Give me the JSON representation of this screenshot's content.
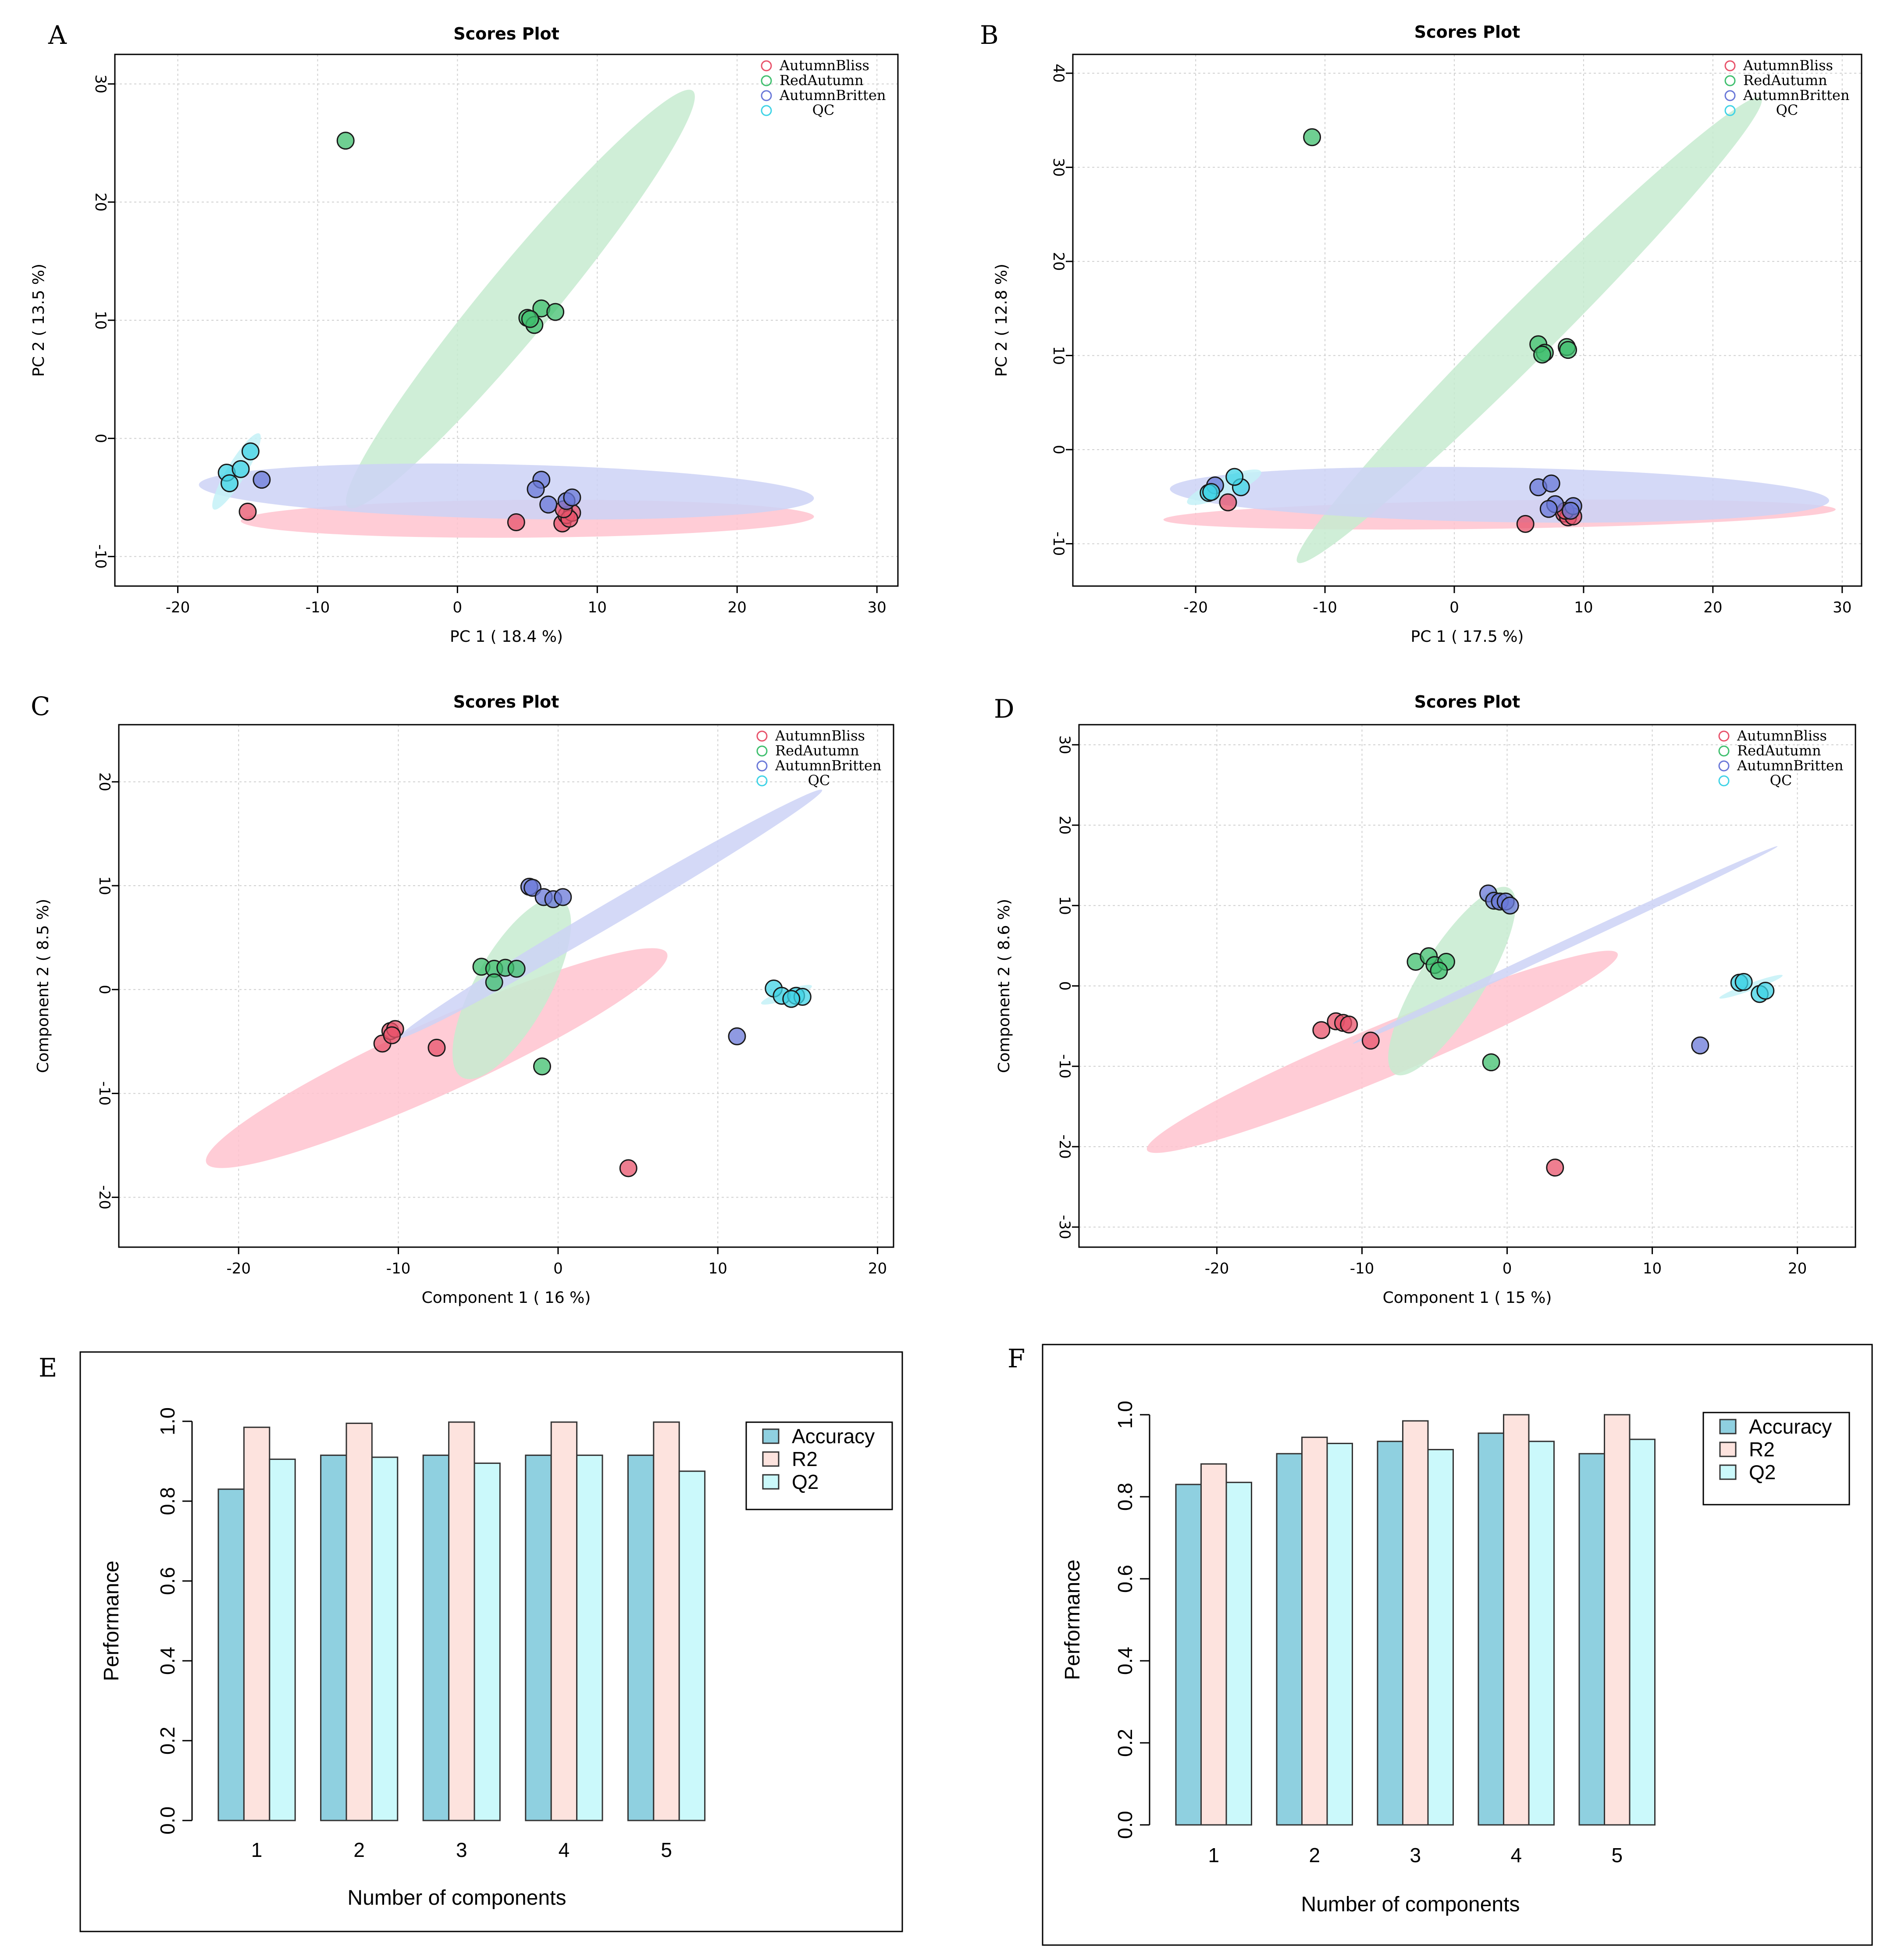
{
  "colors": {
    "AutumnBliss": "#e8536b",
    "RedAutumn": "#3fbf6e",
    "AutumnBritten": "#6a78d8",
    "QC": "#3fd3e6",
    "ellipse_AutumnBliss": "#ffc3cf",
    "ellipse_RedAutumn": "#c7ebd0",
    "ellipse_AutumnBritten": "#cdd2f6",
    "ellipse_QC": "#c4f1f7",
    "bar_Accuracy": "#8fd0e0",
    "bar_R2": "#fde3de",
    "bar_Q2": "#cbf9fb"
  },
  "chart_data": [
    {
      "panel": "A",
      "type": "scatter",
      "title": "Scores Plot",
      "xlabel": "PC 1 ( 18.4 %)",
      "ylabel": "PC 2 ( 13.5 %)",
      "xlim": [
        -24.5,
        31.5
      ],
      "ylim": [
        -12.5,
        32.5
      ],
      "xticks": [
        -20,
        -10,
        0,
        10,
        20,
        30
      ],
      "yticks": [
        -10,
        0,
        10,
        20,
        30
      ],
      "xtick_labels": [
        "-20",
        "-10",
        "0",
        "10",
        "20",
        "30"
      ],
      "ytick_labels": [
        "-10",
        "0",
        "10",
        "20",
        "30"
      ],
      "legend": [
        "AutumnBliss",
        "RedAutumn",
        "AutumnBritten",
        "QC"
      ],
      "series": [
        {
          "name": "AutumnBliss",
          "x": [
            -15,
            4.2,
            7.5,
            7.8,
            8.2,
            8,
            7.6
          ],
          "y": [
            -6.2,
            -7.1,
            -7.2,
            -6.5,
            -6.3,
            -6.8,
            -6
          ]
        },
        {
          "name": "RedAutumn",
          "x": [
            -8,
            5,
            6,
            7,
            5.5,
            5.2
          ],
          "y": [
            25.2,
            10.2,
            11,
            10.7,
            9.6,
            10.1
          ]
        },
        {
          "name": "AutumnBritten",
          "x": [
            -14,
            6,
            5.6,
            6.5,
            7.8,
            8.2
          ],
          "y": [
            -3.5,
            -3.5,
            -4.3,
            -5.6,
            -5.3,
            -5
          ]
        },
        {
          "name": "QC",
          "x": [
            -16.5,
            -16.3,
            -15.5,
            -14.8
          ],
          "y": [
            -2.9,
            -3.8,
            -2.6,
            -1.1
          ]
        }
      ],
      "ellipses": [
        {
          "group": "AutumnBliss",
          "cx": 5,
          "cy": -6.8,
          "rx": 20.5,
          "ry": 1.6,
          "angle_deg": 0.5
        },
        {
          "group": "RedAutumn",
          "cx": 4.5,
          "cy": 11.8,
          "rx": 21.5,
          "ry": 2.6,
          "angle_deg": 55
        },
        {
          "group": "AutumnBritten",
          "cx": 3.5,
          "cy": -4.5,
          "rx": 22,
          "ry": 2.3,
          "angle_deg": -1.5
        },
        {
          "group": "QC",
          "cx": -15.8,
          "cy": -2.8,
          "rx": 3.6,
          "ry": 0.7,
          "angle_deg": 63
        }
      ]
    },
    {
      "panel": "B",
      "type": "scatter",
      "title": "Scores Plot",
      "xlabel": "PC 1 ( 17.5 %)",
      "ylabel": "PC 2 ( 12.8 %)",
      "xlim": [
        -29.5,
        31.5
      ],
      "ylim": [
        -14.5,
        42
      ],
      "xticks": [
        -20,
        -10,
        0,
        10,
        20,
        30
      ],
      "yticks": [
        -10,
        0,
        10,
        20,
        30,
        40
      ],
      "xtick_labels": [
        "-20",
        "-10",
        "0",
        "10",
        "20",
        "30"
      ],
      "ytick_labels": [
        "-10",
        "0",
        "10",
        "20",
        "30",
        "40"
      ],
      "legend": [
        "AutumnBliss",
        "RedAutumn",
        "AutumnBritten",
        "QC"
      ],
      "series": [
        {
          "name": "AutumnBliss",
          "x": [
            -17.5,
            5.5,
            8.5,
            8.8,
            9.2,
            8.6
          ],
          "y": [
            -5.6,
            -7.9,
            -6.8,
            -7.2,
            -7.1,
            -6.5
          ]
        },
        {
          "name": "RedAutumn",
          "x": [
            -11,
            6.5,
            7,
            6.8,
            8.7,
            8.8
          ],
          "y": [
            33.2,
            11.2,
            10.3,
            10.1,
            10.9,
            10.6
          ]
        },
        {
          "name": "AutumnBritten",
          "x": [
            -18.5,
            6.5,
            7.5,
            7.8,
            9.2,
            7.3,
            9
          ],
          "y": [
            -3.8,
            -4,
            -3.6,
            -5.8,
            -6,
            -6.3,
            -6.5
          ]
        },
        {
          "name": "QC",
          "x": [
            -19,
            -16.5,
            -17,
            -18.8
          ],
          "y": [
            -4.6,
            -4,
            -2.9,
            -4.5
          ]
        }
      ],
      "ellipses": [
        {
          "group": "AutumnBliss",
          "cx": 3.5,
          "cy": -6.9,
          "rx": 26,
          "ry": 1.5,
          "angle_deg": 1.2
        },
        {
          "group": "RedAutumn",
          "cx": 5.8,
          "cy": 12.7,
          "rx": 30.5,
          "ry": 2.3,
          "angle_deg": 54
        },
        {
          "group": "AutumnBritten",
          "cx": 3.5,
          "cy": -4.8,
          "rx": 25.5,
          "ry": 2.9,
          "angle_deg": -1.4
        },
        {
          "group": "QC",
          "cx": -17.8,
          "cy": -4,
          "rx": 3.3,
          "ry": 0.9,
          "angle_deg": 30
        }
      ]
    },
    {
      "panel": "C",
      "type": "scatter",
      "title": "Scores Plot",
      "xlabel": "Component 1 ( 16 %)",
      "ylabel": "Component 2 ( 8.5 %)",
      "xlim": [
        -27.5,
        21
      ],
      "ylim": [
        -24.8,
        25.5
      ],
      "xticks": [
        -20,
        -10,
        0,
        10,
        20
      ],
      "yticks": [
        -20,
        -10,
        0,
        10,
        20
      ],
      "xtick_labels": [
        "-20",
        "-10",
        "0",
        "10",
        "20"
      ],
      "ytick_labels": [
        "-20",
        "-10",
        "0",
        "10",
        "20"
      ],
      "legend": [
        "AutumnBliss",
        "RedAutumn",
        "AutumnBritten",
        "QC"
      ],
      "series": [
        {
          "name": "AutumnBliss",
          "x": [
            -11,
            -10.5,
            -10.2,
            -10.4,
            -7.6,
            4.4
          ],
          "y": [
            -5.2,
            -4,
            -3.8,
            -4.4,
            -5.6,
            -17.2
          ]
        },
        {
          "name": "RedAutumn",
          "x": [
            -4.8,
            -4,
            -3.3,
            -2.6,
            -4,
            -1
          ],
          "y": [
            2.2,
            2,
            2.1,
            2,
            0.7,
            -7.4
          ]
        },
        {
          "name": "AutumnBritten",
          "x": [
            -1.8,
            -1.6,
            -0.9,
            -0.3,
            0.3,
            11.2
          ],
          "y": [
            9.9,
            9.8,
            8.9,
            8.7,
            8.9,
            -4.5
          ]
        },
        {
          "name": "QC",
          "x": [
            13.5,
            14,
            14.9,
            15.3,
            14.6
          ],
          "y": [
            0.1,
            -0.6,
            -0.6,
            -0.7,
            -0.9
          ]
        }
      ],
      "ellipses": [
        {
          "group": "AutumnBliss",
          "cx": -7.6,
          "cy": -6.6,
          "rx": 17.6,
          "ry": 2.9,
          "angle_deg": 35
        },
        {
          "group": "RedAutumn",
          "cx": -2.9,
          "cy": 0.1,
          "rx": 9.1,
          "ry": 2.4,
          "angle_deg": 70
        },
        {
          "group": "AutumnBritten",
          "cx": 3.3,
          "cy": 7.3,
          "rx": 17.8,
          "ry": 0.85,
          "angle_deg": 42
        },
        {
          "group": "QC",
          "cx": 14.3,
          "cy": -0.5,
          "rx": 1.8,
          "ry": 0.4,
          "angle_deg": 28
        }
      ]
    },
    {
      "panel": "D",
      "type": "scatter",
      "title": "Scores Plot",
      "xlabel": "Component 1 ( 15 %)",
      "ylabel": "Component 2 ( 8.6 %)",
      "xlim": [
        -29.5,
        24
      ],
      "ylim": [
        -32.5,
        32.5
      ],
      "xticks": [
        -20,
        -10,
        0,
        10,
        20
      ],
      "yticks": [
        -30,
        -20,
        -10,
        0,
        10,
        20,
        30
      ],
      "xtick_labels": [
        "-20",
        "-10",
        "0",
        "10",
        "20"
      ],
      "ytick_labels": [
        "-30",
        "-20",
        "-10",
        "0",
        "10",
        "20",
        "30"
      ],
      "legend": [
        "AutumnBliss",
        "RedAutumn",
        "AutumnBritten",
        "QC"
      ],
      "series": [
        {
          "name": "AutumnBliss",
          "x": [
            -12.8,
            -11.8,
            -11.3,
            -10.9,
            -9.4,
            3.3
          ],
          "y": [
            -5.5,
            -4.4,
            -4.6,
            -4.8,
            -6.8,
            -22.6
          ]
        },
        {
          "name": "RedAutumn",
          "x": [
            -6.3,
            -5.4,
            -5,
            -4.2,
            -4.7,
            -1.1
          ],
          "y": [
            3,
            3.7,
            2.6,
            3,
            1.9,
            -9.5
          ]
        },
        {
          "name": "AutumnBritten",
          "x": [
            -1.3,
            -0.9,
            -0.5,
            -0.1,
            0.2,
            13.3
          ],
          "y": [
            11.5,
            10.6,
            10.5,
            10.5,
            10,
            -7.4
          ]
        },
        {
          "name": "QC",
          "x": [
            16,
            16.3,
            17.4,
            17.8
          ],
          "y": [
            0.4,
            0.5,
            -1,
            -0.6
          ]
        }
      ],
      "ellipses": [
        {
          "group": "AutumnBliss",
          "cx": -8.6,
          "cy": -8.2,
          "rx": 20.3,
          "ry": 2.4,
          "angle_deg": 37
        },
        {
          "group": "RedAutumn",
          "cx": -3.8,
          "cy": 0.6,
          "rx": 12.2,
          "ry": 2.3,
          "angle_deg": 71
        },
        {
          "group": "AutumnBritten",
          "cx": 4,
          "cy": 5.1,
          "rx": 19.1,
          "ry": 0.4,
          "angle_deg": 40
        },
        {
          "group": "QC",
          "cx": 16.8,
          "cy": -0.1,
          "rx": 2.6,
          "ry": 0.35,
          "angle_deg": 33
        }
      ]
    },
    {
      "panel": "E",
      "type": "bar",
      "xlabel": "Number of components",
      "ylabel": "Performance",
      "ylim": [
        0,
        1
      ],
      "yticks": [
        0,
        0.2,
        0.4,
        0.6,
        0.8,
        1
      ],
      "ytick_labels": [
        "0.0",
        "0.2",
        "0.4",
        "0.6",
        "0.8",
        "1.0"
      ],
      "categories": [
        "1",
        "2",
        "3",
        "4",
        "5"
      ],
      "series": [
        {
          "name": "Accuracy",
          "values": [
            0.83,
            0.915,
            0.915,
            0.915,
            0.915
          ]
        },
        {
          "name": "R2",
          "values": [
            0.985,
            0.995,
            0.998,
            0.998,
            0.998
          ]
        },
        {
          "name": "Q2",
          "values": [
            0.905,
            0.91,
            0.895,
            0.915,
            0.875
          ]
        }
      ],
      "legend": [
        "Accuracy",
        "R2",
        "Q2"
      ]
    },
    {
      "panel": "F",
      "type": "bar",
      "xlabel": "Number of components",
      "ylabel": "Performance",
      "ylim": [
        0,
        1
      ],
      "yticks": [
        0,
        0.2,
        0.4,
        0.6,
        0.8,
        1
      ],
      "ytick_labels": [
        "0.0",
        "0.2",
        "0.4",
        "0.6",
        "0.8",
        "1.0"
      ],
      "categories": [
        "1",
        "2",
        "3",
        "4",
        "5"
      ],
      "series": [
        {
          "name": "Accuracy",
          "values": [
            0.83,
            0.905,
            0.935,
            0.955,
            0.905
          ]
        },
        {
          "name": "R2",
          "values": [
            0.88,
            0.945,
            0.985,
            1.0,
            1.0
          ]
        },
        {
          "name": "Q2",
          "values": [
            0.835,
            0.93,
            0.915,
            0.935,
            0.94
          ]
        }
      ],
      "legend": [
        "Accuracy",
        "R2",
        "Q2"
      ]
    }
  ]
}
